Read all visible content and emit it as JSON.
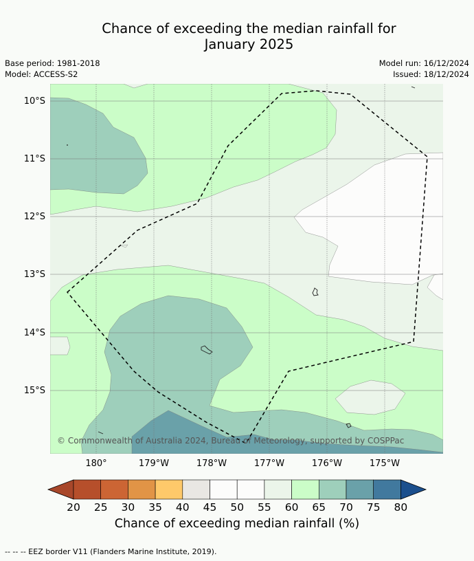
{
  "title_line1": "Chance of exceeding the median rainfall for",
  "title_line2": "January 2025",
  "base_period": "Base period: 1981-2018",
  "model": "Model: ACCESS-S2",
  "model_run": "Model run: 16/12/2024",
  "issued": "Issued: 18/12/2024",
  "copyright": "© Commonwealth of Australia 2024, Bureau of Meteorology, supported by COSPPac",
  "lat_labels": [
    "10°S",
    "11°S",
    "12°S",
    "13°S",
    "14°S",
    "15°S"
  ],
  "lon_labels": [
    "180°",
    "179°W",
    "178°W",
    "177°W",
    "176°W",
    "175°W"
  ],
  "colorbar": {
    "label": "Chance of exceeding median rainfall (%)",
    "ticks": [
      "20",
      "25",
      "30",
      "35",
      "40",
      "45",
      "50",
      "55",
      "60",
      "65",
      "70",
      "75",
      "80"
    ],
    "colors": [
      "#a8472a",
      "#b64f2b",
      "#cc6534",
      "#e19446",
      "#fec96a",
      "#e9e7e3",
      "#fcfcfb",
      "#fcfcfb",
      "#ebf5ea",
      "#cbfdc8",
      "#9ecfbb",
      "#6aa1a9",
      "#41799e",
      "#1b4f8d"
    ]
  },
  "legend_note": "--  --  -- EEZ border V11 (Flanders Marine Institute, 2019).",
  "colors": {
    "c55_60": "#ebf5ea",
    "c60_65": "#cbfdc8",
    "c65_70": "#9ecfbb",
    "c70_75": "#6aa1a9",
    "c50_55": "#fcfcfb"
  }
}
